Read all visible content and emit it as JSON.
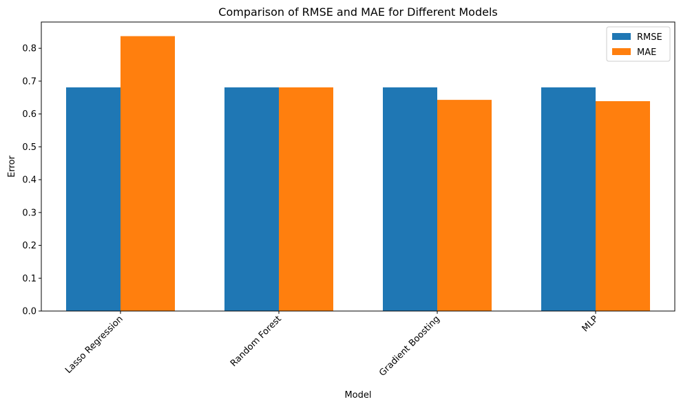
{
  "chart_data": {
    "type": "bar",
    "title": "Comparison of RMSE and MAE for Different Models",
    "xlabel": "Model",
    "ylabel": "Error",
    "categories": [
      "Lasso Regression",
      "Random Forest",
      "Gradient Boosting",
      "MLP"
    ],
    "series": [
      {
        "name": "RMSE",
        "color": "#1f77b4",
        "values": [
          0.681,
          0.681,
          0.681,
          0.681
        ]
      },
      {
        "name": "MAE",
        "color": "#ff7f0e",
        "values": [
          0.837,
          0.681,
          0.643,
          0.639
        ]
      }
    ],
    "ylim": [
      0,
      0.88
    ],
    "yticks": [
      "0.0",
      "0.1",
      "0.2",
      "0.3",
      "0.4",
      "0.5",
      "0.6",
      "0.7",
      "0.8"
    ],
    "legend_position": "top-right",
    "grid": false
  }
}
